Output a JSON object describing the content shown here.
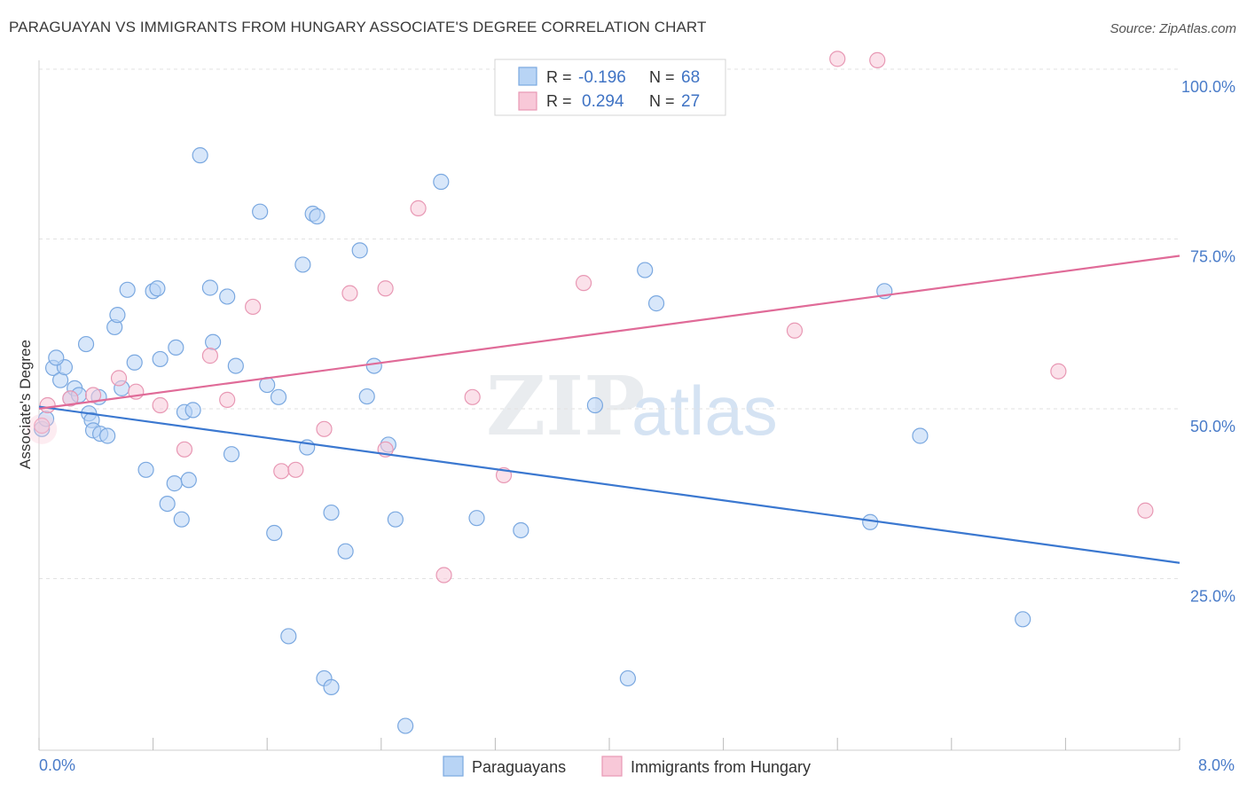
{
  "title": "PARAGUAYAN VS IMMIGRANTS FROM HUNGARY ASSOCIATE'S DEGREE CORRELATION CHART",
  "source": "Source: ZipAtlas.com",
  "watermark": {
    "zip": "ZIP",
    "atlas": "atlas"
  },
  "colors": {
    "blue_fill": "#b8d4f5",
    "blue_stroke": "#7aa8e0",
    "blue_line": "#3b78d0",
    "pink_fill": "#f8c8d8",
    "pink_stroke": "#e898b4",
    "pink_line": "#e06b98",
    "tick_text": "#4a7cc9",
    "grid": "#dddddd"
  },
  "legend": {
    "rows": [
      {
        "r_label": "R =",
        "r_value": "-0.196",
        "n_label": "N =",
        "n_value": "68"
      },
      {
        "r_label": "R =",
        "r_value": "0.294",
        "n_label": "N =",
        "n_value": "27"
      }
    ]
  },
  "bottom_legend": [
    "Paraguayans",
    "Immigrants from Hungary"
  ],
  "chart_data": {
    "type": "scatter",
    "title": "PARAGUAYAN VS IMMIGRANTS FROM HUNGARY ASSOCIATE'S DEGREE CORRELATION CHART",
    "xlabel": "",
    "ylabel": "Associate's Degree",
    "xlim": [
      0,
      8
    ],
    "ylim": [
      0,
      105
    ],
    "x_tick_labels": [
      "0.0%",
      "8.0%"
    ],
    "y_tick_labels": [
      "100.0%",
      "75.0%",
      "50.0%",
      "25.0%"
    ],
    "y_ticks": [
      100,
      75,
      50,
      25
    ],
    "grid": true,
    "legend_placement": "top-center",
    "series": [
      {
        "name": "Paraguayans",
        "color": "#b8d4f5",
        "trend": {
          "x": [
            0,
            8
          ],
          "y": [
            52.8,
            29.8
          ]
        },
        "points": [
          [
            0.02,
            49.5
          ],
          [
            0.05,
            51.0
          ],
          [
            0.1,
            58.5
          ],
          [
            0.15,
            56.7
          ],
          [
            0.18,
            58.6
          ],
          [
            0.22,
            54.0
          ],
          [
            0.25,
            55.5
          ],
          [
            0.28,
            54.5
          ],
          [
            0.33,
            62.0
          ],
          [
            0.35,
            51.8
          ],
          [
            0.37,
            50.8
          ],
          [
            0.38,
            49.3
          ],
          [
            0.42,
            54.2
          ],
          [
            0.43,
            48.8
          ],
          [
            0.48,
            48.5
          ],
          [
            0.53,
            64.5
          ],
          [
            0.55,
            66.3
          ],
          [
            0.58,
            55.5
          ],
          [
            0.62,
            70.0
          ],
          [
            0.67,
            59.3
          ],
          [
            0.75,
            43.5
          ],
          [
            0.8,
            69.8
          ],
          [
            0.83,
            70.2
          ],
          [
            0.85,
            59.8
          ],
          [
            0.9,
            38.5
          ],
          [
            0.95,
            41.5
          ],
          [
            0.96,
            61.5
          ],
          [
            1.0,
            36.2
          ],
          [
            1.02,
            52.0
          ],
          [
            1.05,
            42.0
          ],
          [
            1.08,
            52.3
          ],
          [
            1.13,
            89.8
          ],
          [
            1.2,
            70.3
          ],
          [
            1.22,
            62.3
          ],
          [
            1.32,
            69.0
          ],
          [
            1.35,
            45.8
          ],
          [
            1.38,
            58.8
          ],
          [
            1.55,
            81.5
          ],
          [
            1.6,
            56.0
          ],
          [
            1.65,
            34.2
          ],
          [
            1.68,
            54.2
          ],
          [
            1.75,
            19.0
          ],
          [
            1.85,
            73.7
          ],
          [
            1.88,
            46.8
          ],
          [
            1.92,
            81.2
          ],
          [
            1.95,
            80.8
          ],
          [
            2.0,
            12.8
          ],
          [
            2.05,
            11.5
          ],
          [
            2.05,
            37.2
          ],
          [
            2.15,
            31.5
          ],
          [
            2.25,
            75.8
          ],
          [
            2.3,
            54.3
          ],
          [
            2.35,
            58.8
          ],
          [
            2.45,
            47.2
          ],
          [
            2.5,
            36.2
          ],
          [
            2.57,
            5.8
          ],
          [
            2.82,
            85.9
          ],
          [
            3.07,
            36.4
          ],
          [
            3.38,
            34.6
          ],
          [
            3.9,
            53.0
          ],
          [
            4.13,
            12.8
          ],
          [
            4.25,
            72.9
          ],
          [
            4.33,
            68.0
          ],
          [
            5.83,
            35.8
          ],
          [
            5.93,
            69.8
          ],
          [
            6.18,
            48.5
          ],
          [
            6.9,
            21.5
          ],
          [
            0.12,
            60.0
          ]
        ]
      },
      {
        "name": "Immigrants from Hungary",
        "color": "#f8c8d8",
        "trend": {
          "x": [
            0,
            8
          ],
          "y": [
            52.5,
            75.0
          ]
        },
        "points": [
          [
            0.02,
            50.0
          ],
          [
            0.22,
            54.0
          ],
          [
            0.38,
            54.5
          ],
          [
            0.56,
            57.0
          ],
          [
            0.68,
            55.0
          ],
          [
            0.85,
            53.0
          ],
          [
            1.02,
            46.5
          ],
          [
            1.2,
            60.3
          ],
          [
            1.32,
            53.8
          ],
          [
            1.5,
            67.5
          ],
          [
            1.7,
            43.3
          ],
          [
            1.8,
            43.5
          ],
          [
            2.0,
            49.5
          ],
          [
            2.18,
            69.5
          ],
          [
            2.43,
            70.2
          ],
          [
            2.43,
            46.5
          ],
          [
            2.66,
            82.0
          ],
          [
            2.84,
            28.0
          ],
          [
            3.04,
            54.2
          ],
          [
            3.26,
            42.7
          ],
          [
            3.82,
            71.0
          ],
          [
            5.3,
            64.0
          ],
          [
            5.6,
            104.0
          ],
          [
            5.88,
            103.8
          ],
          [
            7.15,
            58.0
          ],
          [
            7.76,
            37.5
          ],
          [
            0.06,
            53.0
          ]
        ]
      }
    ]
  }
}
